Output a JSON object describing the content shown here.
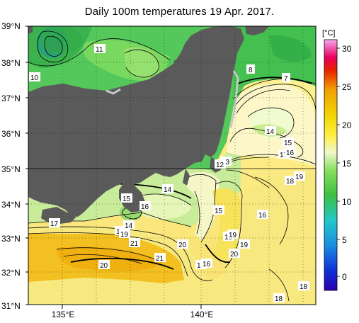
{
  "title": "Daily 100m temperatures 19 Apr. 2017.",
  "lat_labels": [
    "39°N",
    "38°N",
    "37°N",
    "36°N",
    "35°N",
    "34°N",
    "33°N",
    "32°N",
    "31°N"
  ],
  "lon_labels": [
    "135°E",
    "140°E"
  ],
  "colorbar": {
    "unit": "[°C]",
    "ticks": [
      "30",
      "25",
      "20",
      "15",
      "10",
      "5",
      "0"
    ]
  },
  "contour_labels": [
    "11",
    "10",
    "8",
    "7",
    "14",
    "15",
    "17",
    "16",
    "13",
    "12",
    "19",
    "18",
    "14",
    "15",
    "16",
    "17",
    "18",
    "19",
    "14",
    "15",
    "16",
    "21",
    "20",
    "21",
    "20",
    "20",
    "19",
    "18",
    "17",
    "16",
    "19",
    "18",
    "20",
    "18",
    "18"
  ],
  "colors": {
    "land": "#5a5a5a",
    "coast_ice": "#c8c8c8",
    "cold": "#1a9e3a",
    "warm": "#f2d400"
  }
}
